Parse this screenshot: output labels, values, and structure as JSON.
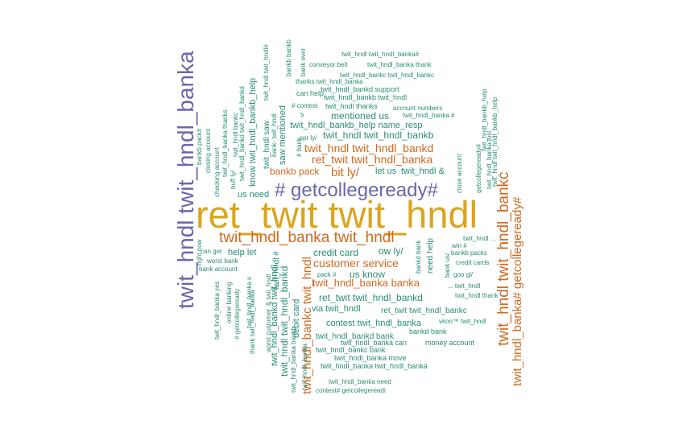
{
  "colors": {
    "gold": "#DAA520",
    "purple": "#6B66AC",
    "orange": "#D2691E",
    "teal": "#2A8C75"
  },
  "words": [
    {
      "text": "ret_twit twit_hndl",
      "c": "gold"
    },
    {
      "text": "twit_hndl twit_hndl_banka",
      "c": "purple"
    },
    {
      "text": "# getcollegeready#",
      "c": "purple"
    },
    {
      "text": "twit_hndl_banka twit_hndl",
      "c": "orange"
    },
    {
      "text": "twit_hndl twit_hndl_bankc",
      "c": "orange"
    },
    {
      "text": "twit_hndl_banka# getcollegeready#",
      "c": "orange"
    },
    {
      "text": "twit_hndl twit_hndl_bankd",
      "c": "orange"
    },
    {
      "text": "ret_twit twit_hndl_banka",
      "c": "orange"
    },
    {
      "text": "bit ly/",
      "c": "orange"
    },
    {
      "text": "bankb pack",
      "c": "orange"
    },
    {
      "text": "customer service",
      "c": "orange"
    },
    {
      "text": "twit_hndl_banka banka",
      "c": "orange"
    },
    {
      "text": "twit_hndl_bankc twit_hndl",
      "c": "orange"
    },
    {
      "text": "credit card",
      "c": "teal"
    },
    {
      "text": "ow ly/",
      "c": "teal"
    },
    {
      "text": "us know",
      "c": "teal"
    },
    {
      "text": "help let",
      "c": "teal"
    },
    {
      "text": "mentioned us",
      "c": "teal"
    },
    {
      "text": "twit_hndl_bankb_help name_resp",
      "c": "teal"
    },
    {
      "text": "twit_hndl twit_hndl_bankb",
      "c": "teal"
    },
    {
      "text": "saw mentioned",
      "c": "teal"
    },
    {
      "text": "let us",
      "c": "teal"
    },
    {
      "text": "twit_hndl &",
      "c": "teal"
    },
    {
      "text": "us need",
      "c": "teal"
    },
    {
      "text": "know twit_hndl_bankb_help",
      "c": "teal"
    },
    {
      "text": "twit_hndl twit_hndl_bankd",
      "c": "teal"
    },
    {
      "text": "debit card",
      "c": "teal"
    },
    {
      "text": "ret_twit twit_hndl_bankd",
      "c": "teal"
    },
    {
      "text": "via twit_hndl",
      "c": "teal"
    },
    {
      "text": "ret_twit twit_hndl_bankc",
      "c": "teal"
    },
    {
      "text": "contest twit_hndl_banka",
      "c": "teal"
    },
    {
      "text": "twit_hndl_bankd bank",
      "c": "teal"
    },
    {
      "text": "bankd bank",
      "c": "teal"
    },
    {
      "text": "twit_hndl_banka can",
      "c": "teal"
    },
    {
      "text": "money account",
      "c": "teal"
    },
    {
      "text": "twit_hndl_bankc bank",
      "c": "teal"
    },
    {
      "text": "twit_hndl_banka move",
      "c": "teal"
    },
    {
      "text": "twit_hndl_banka twit_hndl_banka",
      "c": "teal"
    },
    {
      "text": "twit_hndl_banka need",
      "c": "teal"
    },
    {
      "text": "contest# getcollegereadi",
      "c": "teal"
    },
    {
      "text": "twit_hndl twit_hndl_banka#",
      "c": "teal"
    },
    {
      "text": "conveyor belt",
      "c": "teal"
    },
    {
      "text": "twit_hndl_banka thank",
      "c": "teal"
    },
    {
      "text": "twit_hndl_bankc twit_hndl_bankc",
      "c": "teal"
    },
    {
      "text": "thanks twit_hndl_banka",
      "c": "teal"
    },
    {
      "text": "twit_hndl_bankd support",
      "c": "teal"
    },
    {
      "text": "twit_hndl_bankb twit_hndl",
      "c": "teal"
    },
    {
      "text": "can help",
      "c": "teal"
    },
    {
      "text": "# contest",
      "c": "teal"
    },
    {
      "text": "twit_hndl thanks",
      "c": "teal"
    },
    {
      "text": "account numbers",
      "c": "teal"
    },
    {
      "text": "twit_hndl_banka #",
      "c": "teal"
    },
    {
      "text": "'s",
      "c": "teal"
    },
    {
      "text": "spr ly/",
      "c": "teal"
    },
    {
      "text": "twit_hndl ...",
      "c": "teal"
    },
    {
      "text": "win #",
      "c": "teal"
    },
    {
      "text": "bankb packs",
      "c": "teal"
    },
    {
      "text": "credit cards",
      "c": "teal"
    },
    {
      "text": "goo gl/",
      "c": "teal"
    },
    {
      "text": "... twit_hndl",
      "c": "teal"
    },
    {
      "text": "twit_hndl thank",
      "c": "teal"
    },
    {
      "text": "vkon™ twit_hndl",
      "c": "teal"
    },
    {
      "text": "pack #",
      "c": "teal"
    },
    {
      "text": "can get",
      "c": "teal"
    },
    {
      "text": "worst bank",
      "c": "teal"
    },
    {
      "text": "bank account",
      "c": "teal"
    },
    {
      "text": "need help",
      "c": "teal"
    },
    {
      "text": "bankd bank",
      "c": "teal"
    },
    {
      "text": "bank us/",
      "c": "teal"
    },
    {
      "text": "bankb pack#",
      "c": "teal"
    },
    {
      "text": "closing account",
      "c": "teal"
    },
    {
      "text": "twit_hndl_banka thanks",
      "c": "teal"
    },
    {
      "text": "checking account",
      "c": "teal"
    },
    {
      "text": "buff ly/",
      "c": "teal"
    },
    {
      "text": "twit_hndl bankc",
      "c": "teal"
    },
    {
      "text": "twit_hndl_bankd twit_hndl_bankd",
      "c": "teal"
    },
    {
      "text": "twit_hndl saw",
      "c": "teal"
    },
    {
      "text": "bank- twit_hndl",
      "c": "teal"
    },
    {
      "text": "twit_hndl twit_hndl#",
      "c": "teal"
    },
    {
      "text": "bankb bankb",
      "c": "teal"
    },
    {
      "text": "bank ever",
      "c": "teal"
    },
    {
      "text": "# bank",
      "c": "teal"
    },
    {
      "text": "close account",
      "c": "teal"
    },
    {
      "text": "getcollegeready#",
      "c": "teal"
    },
    {
      "text": "twit_hndl_banka just",
      "c": "teal"
    },
    {
      "text": "twit_hndl_bankb_help",
      "c": "teal"
    },
    {
      "text": "twit_hndl twit_hndl_bankb_help",
      "c": "teal"
    },
    {
      "text": "right now",
      "c": "teal"
    },
    {
      "text": "twit_hndl_banka yes",
      "c": "teal"
    },
    {
      "text": "online banking",
      "c": "teal"
    },
    {
      "text": "# getcollegeready",
      "c": "teal"
    },
    {
      "text": "twit_hndl_banka s",
      "c": "teal"
    },
    {
      "text": "thank twit_hndl_banka",
      "c": "teal"
    },
    {
      "text": "worst customer",
      "c": "teal"
    },
    {
      "text": "& twit_hndl",
      "c": "teal"
    },
    {
      "text": "twit_hndl #",
      "c": "teal"
    },
    {
      "text": "twit_hndl_bankd twit_hndl",
      "c": "teal"
    },
    {
      "text": "twit_hndl_banka bankb",
      "c": "teal"
    },
    {
      "text": "twit_hndl_banka",
      "c": "teal"
    }
  ]
}
